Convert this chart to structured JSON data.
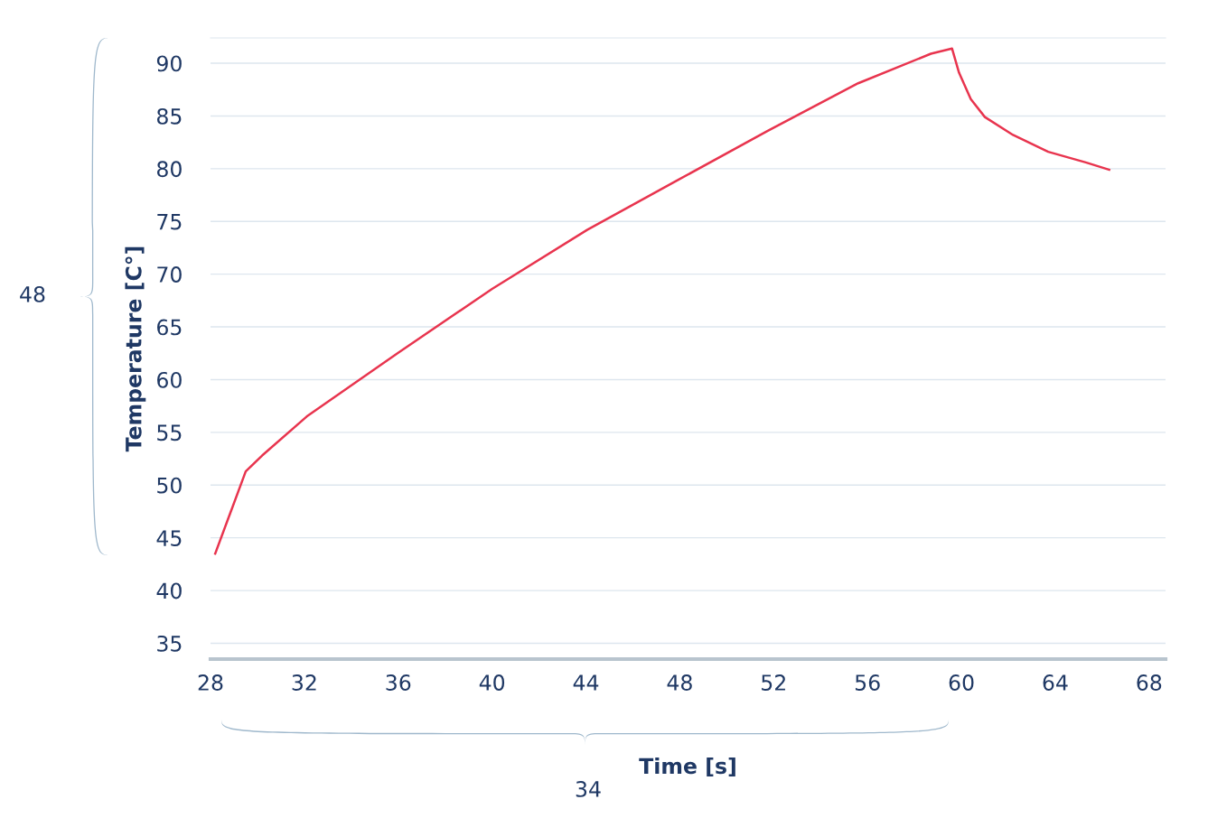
{
  "chart_data": {
    "type": "line",
    "xlabel": "Time [s]",
    "ylabel": "Temperature [C°]",
    "x": [
      28.2,
      29.5,
      30.2,
      32.1,
      35.97,
      40.0,
      44.05,
      47.9,
      51.75,
      55.6,
      58.7,
      59.6,
      59.9,
      60.4,
      61.0,
      62.2,
      63.7,
      65.3,
      66.3
    ],
    "series": [
      {
        "color": "#e8344e",
        "values": [
          43.5,
          51.3,
          52.8,
          56.5,
          62.5,
          68.6,
          74.2,
          78.9,
          83.6,
          88.1,
          90.9,
          91.4,
          89.1,
          86.6,
          84.9,
          83.2,
          81.6,
          80.6,
          79.9
        ]
      }
    ],
    "xlim": [
      28,
      68.7
    ],
    "ylim": [
      33.5,
      92.4
    ],
    "xticks": [
      28,
      32,
      36,
      40,
      44,
      48,
      52,
      56,
      60,
      64,
      68
    ],
    "yticks": [
      35,
      40,
      45,
      50,
      55,
      60,
      65,
      70,
      75,
      80,
      85,
      90
    ],
    "grid": "y",
    "marker": "none",
    "line_style": "solid",
    "legend": false,
    "annotations": [
      "48",
      "34"
    ]
  }
}
